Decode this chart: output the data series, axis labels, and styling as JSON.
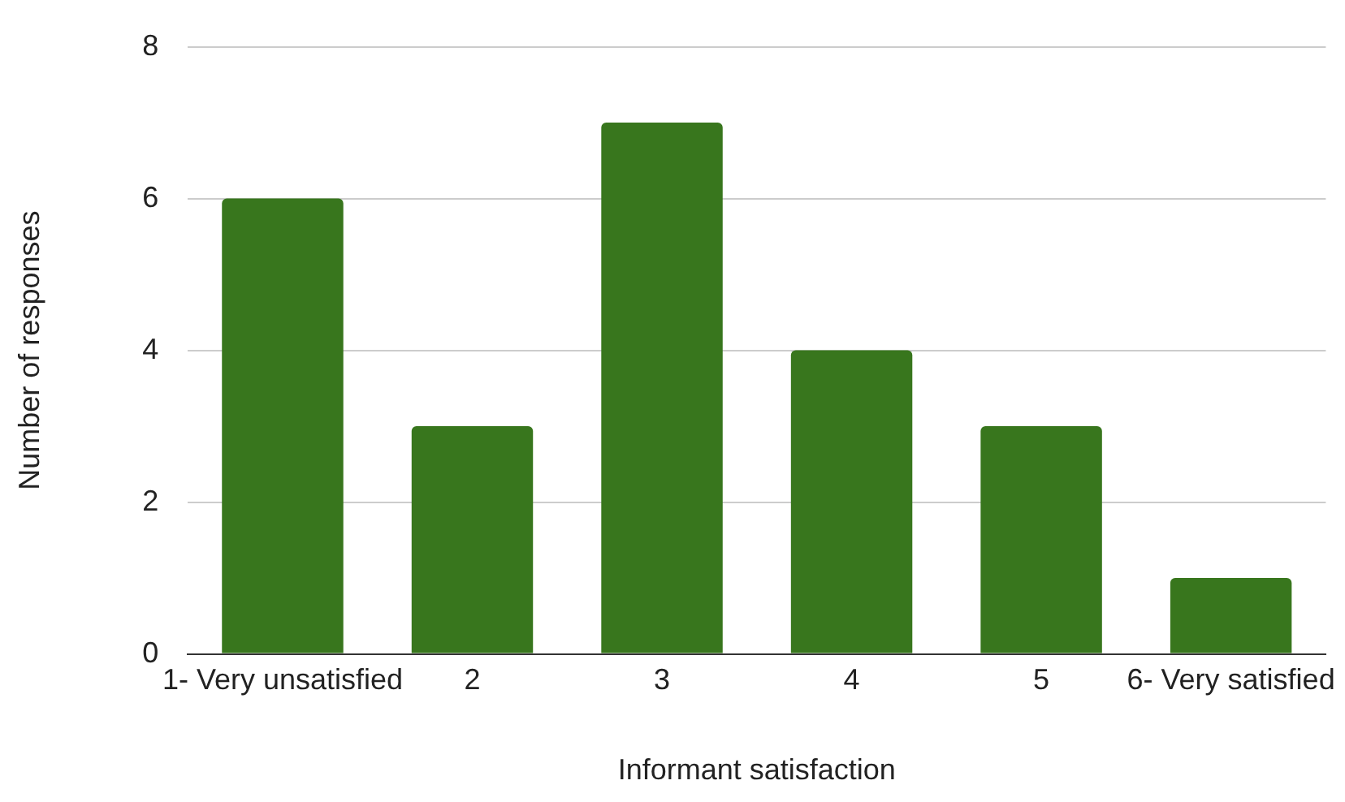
{
  "chart_data": {
    "type": "bar",
    "xlabel": "Informant satisfaction",
    "ylabel": "Number of responses",
    "categories": [
      "1- Very unsatisfied",
      "2",
      "3",
      "4",
      "5",
      "6- Very satisfied"
    ],
    "values": [
      6,
      3,
      7,
      4,
      3,
      1
    ],
    "color": "#38761d",
    "ylim": [
      0,
      8
    ],
    "yticks": [
      0,
      2,
      4,
      6,
      8
    ],
    "grid": "y",
    "legend": false
  }
}
